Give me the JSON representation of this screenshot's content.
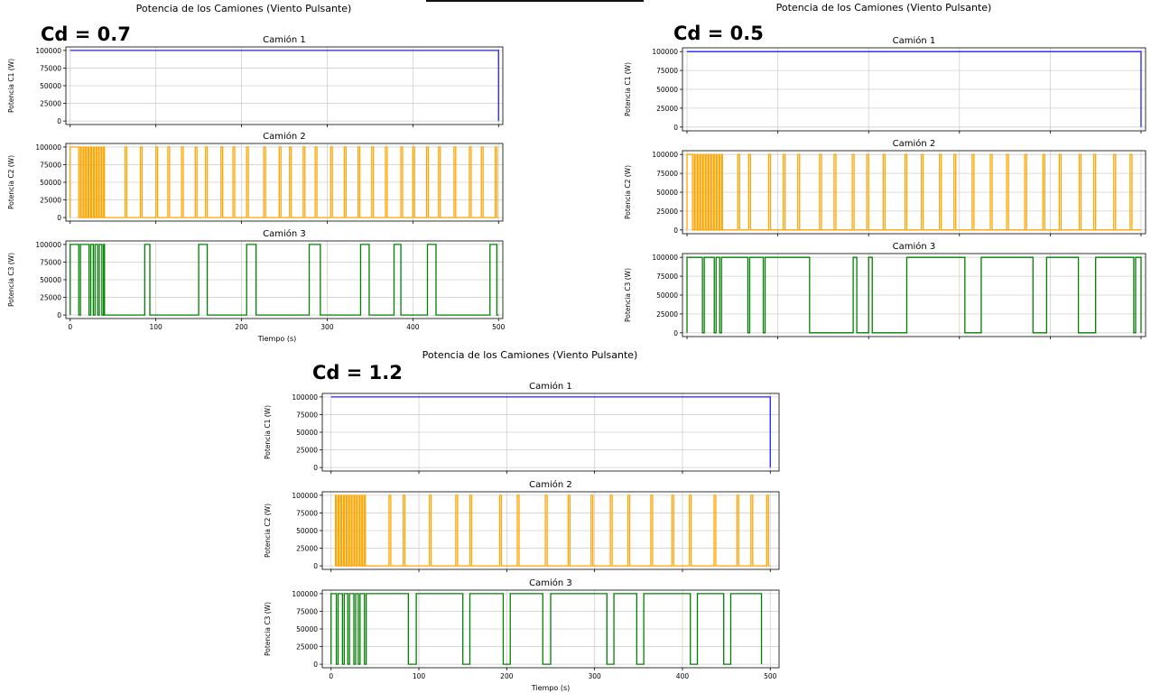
{
  "colors": {
    "truck1": "#1f1fff",
    "truck2": "#ffa500",
    "truck3": "#008000",
    "grid": "#d0d0d0",
    "axis": "#000000",
    "text": "#000000"
  },
  "panels": [
    {
      "id": "cd07",
      "cd_label": "Cd = 0.7",
      "figure_title": "Potencia de los Camiones (Viento Pulsante)",
      "xlabel": "Tiempo (s)",
      "show_x_tick_labels": true
    },
    {
      "id": "cd05",
      "cd_label": "Cd = 0.5",
      "figure_title": "Potencia de los Camiones (Viento Pulsante)",
      "xlabel": "",
      "show_x_tick_labels": false
    },
    {
      "id": "cd12",
      "cd_label": "Cd =  1.2",
      "figure_title": "Potencia de los Camiones (Viento Pulsante)",
      "xlabel": "Tiempo (s)",
      "show_x_tick_labels": true
    }
  ],
  "chart_data": [
    {
      "panel": "cd07",
      "type": "line",
      "title": "Camión 1",
      "ylabel": "Potencia C1 (W)",
      "xlim": [
        -5,
        505
      ],
      "ylim": [
        -5000,
        105000
      ],
      "x_ticks": [
        0,
        100,
        200,
        300,
        400,
        500
      ],
      "y_ticks": [
        0,
        25000,
        50000,
        75000,
        100000
      ],
      "y_tick_labels": [
        "0",
        "25000",
        "50000",
        "75000",
        "100000"
      ],
      "color_key": "truck1",
      "series": [
        {
          "x": [
            0,
            500,
            500
          ],
          "y": [
            100000,
            100000,
            0
          ]
        }
      ]
    },
    {
      "panel": "cd07",
      "type": "line",
      "title": "Camión 2",
      "ylabel": "Potencia C2 (W)",
      "xlim": [
        -5,
        505
      ],
      "ylim": [
        -5000,
        105000
      ],
      "x_ticks": [
        0,
        100,
        200,
        300,
        400,
        500
      ],
      "y_ticks": [
        0,
        25000,
        50000,
        75000,
        100000
      ],
      "y_tick_labels": [
        "0",
        "25000",
        "50000",
        "75000",
        "100000"
      ],
      "color_key": "truck2",
      "square_wave": {
        "start_high": true,
        "end": 500,
        "toggles": [
          0,
          10,
          12,
          13,
          15,
          16,
          18,
          19,
          21,
          22,
          24,
          25,
          27,
          28,
          30,
          31,
          33,
          34,
          36,
          37,
          39,
          40,
          64,
          66,
          82,
          84,
          100,
          102,
          114,
          116,
          130,
          132,
          146,
          148,
          158,
          160,
          176,
          178,
          190,
          192,
          206,
          208,
          226,
          228,
          244,
          246,
          256,
          258,
          272,
          274,
          286,
          288,
          304,
          306,
          320,
          322,
          336,
          338,
          352,
          354,
          368,
          370,
          386,
          388,
          400,
          402,
          416,
          418,
          430,
          432,
          448,
          450,
          466,
          468,
          480,
          482,
          496,
          498
        ]
      }
    },
    {
      "panel": "cd07",
      "type": "line",
      "title": "Camión 3",
      "ylabel": "Potencia C3 (W)",
      "xlabel": "Tiempo (s)",
      "xlim": [
        -5,
        505
      ],
      "ylim": [
        -5000,
        105000
      ],
      "x_ticks": [
        0,
        100,
        200,
        300,
        400,
        500
      ],
      "x_tick_labels": [
        "0",
        "100",
        "200",
        "300",
        "400",
        "500"
      ],
      "y_ticks": [
        0,
        25000,
        50000,
        75000,
        100000
      ],
      "y_tick_labels": [
        "0",
        "25000",
        "50000",
        "75000",
        "100000"
      ],
      "color_key": "truck3",
      "square_wave": {
        "start_high": true,
        "end": 500,
        "toggles": [
          0,
          10,
          12,
          22,
          24,
          27,
          29,
          32,
          34,
          37,
          39,
          40,
          87,
          93,
          150,
          160,
          206,
          217,
          279,
          292,
          339,
          349,
          378,
          386,
          417,
          427,
          490,
          498
        ]
      }
    },
    {
      "panel": "cd05",
      "type": "line",
      "title": "Camión 1",
      "ylabel": "Potencia C1 (W)",
      "xlim": [
        -5,
        505
      ],
      "ylim": [
        -5000,
        105000
      ],
      "x_ticks": [
        0,
        100,
        200,
        300,
        400,
        500
      ],
      "y_ticks": [
        0,
        25000,
        50000,
        75000,
        100000
      ],
      "y_tick_labels": [
        "0",
        "25000",
        "50000",
        "75000",
        "100000"
      ],
      "color_key": "truck1",
      "series": [
        {
          "x": [
            0,
            500,
            500
          ],
          "y": [
            100000,
            100000,
            0
          ]
        }
      ]
    },
    {
      "panel": "cd05",
      "type": "line",
      "title": "Camión 2",
      "ylabel": "Potencia C2 (W)",
      "xlim": [
        -5,
        505
      ],
      "ylim": [
        -5000,
        105000
      ],
      "x_ticks": [
        0,
        100,
        200,
        300,
        400,
        500
      ],
      "y_ticks": [
        0,
        25000,
        50000,
        75000,
        100000
      ],
      "y_tick_labels": [
        "0",
        "25000",
        "50000",
        "75000",
        "100000"
      ],
      "color_key": "truck2",
      "square_wave": {
        "start_high": true,
        "end": 500,
        "toggles": [
          0,
          6,
          8,
          9,
          11,
          12,
          14,
          15,
          17,
          18,
          20,
          21,
          23,
          24,
          26,
          27,
          29,
          30,
          32,
          33,
          35,
          36,
          38,
          39,
          56,
          58,
          68,
          70,
          90,
          92,
          106,
          108,
          122,
          124,
          146,
          148,
          162,
          164,
          182,
          184,
          198,
          200,
          216,
          218,
          240,
          242,
          258,
          260,
          278,
          280,
          294,
          296,
          314,
          316,
          334,
          336,
          352,
          354,
          372,
          374,
          392,
          394,
          410,
          412,
          432,
          434,
          448,
          450,
          470,
          472,
          488,
          490
        ]
      }
    },
    {
      "panel": "cd05",
      "type": "line",
      "title": "Camión 3",
      "ylabel": "Potencia C3 (W)",
      "xlim": [
        -5,
        505
      ],
      "ylim": [
        -5000,
        105000
      ],
      "x_ticks": [
        0,
        100,
        200,
        300,
        400,
        500
      ],
      "y_ticks": [
        0,
        25000,
        50000,
        75000,
        100000
      ],
      "y_tick_labels": [
        "0",
        "25000",
        "50000",
        "75000",
        "100000"
      ],
      "color_key": "truck3",
      "square_wave": {
        "start_high": true,
        "end": 500,
        "toggles": [
          0,
          17,
          19,
          30,
          32,
          36,
          38,
          67,
          69,
          84,
          86,
          135,
          183,
          187,
          200,
          204,
          242,
          306,
          324,
          381,
          396,
          431,
          450,
          492,
          494
        ]
      }
    },
    {
      "panel": "cd12",
      "type": "line",
      "title": "Camión 1",
      "ylabel": "Potencia C1 (W)",
      "xlim": [
        -10,
        510
      ],
      "ylim": [
        -5000,
        105000
      ],
      "x_ticks": [
        0,
        100,
        200,
        300,
        400,
        500
      ],
      "y_ticks": [
        0,
        25000,
        50000,
        75000,
        100000
      ],
      "y_tick_labels": [
        "0",
        "25000",
        "50000",
        "75000",
        "100000"
      ],
      "color_key": "truck1",
      "series": [
        {
          "x": [
            0,
            500,
            500
          ],
          "y": [
            100000,
            100000,
            0
          ]
        }
      ]
    },
    {
      "panel": "cd12",
      "type": "line",
      "title": "Camión 2",
      "ylabel": "Potencia C2 (W)",
      "xlim": [
        -10,
        510
      ],
      "ylim": [
        -5000,
        105000
      ],
      "x_ticks": [
        0,
        100,
        200,
        300,
        400,
        500
      ],
      "y_ticks": [
        0,
        25000,
        50000,
        75000,
        100000
      ],
      "y_tick_labels": [
        "0",
        "25000",
        "50000",
        "75000",
        "100000"
      ],
      "color_key": "truck2",
      "square_wave": {
        "start_high": true,
        "end": 500,
        "toggles": [
          5,
          6,
          8,
          9,
          11,
          12,
          14,
          15,
          17,
          18,
          20,
          21,
          23,
          24,
          26,
          27,
          29,
          30,
          32,
          33,
          35,
          36,
          38,
          39,
          66,
          68,
          82,
          84,
          112,
          114,
          142,
          144,
          158,
          160,
          192,
          194,
          212,
          214,
          244,
          246,
          270,
          272,
          296,
          298,
          318,
          320,
          338,
          340,
          364,
          366,
          388,
          390,
          408,
          410,
          436,
          438,
          462,
          464,
          478,
          480,
          496,
          498
        ]
      }
    },
    {
      "panel": "cd12",
      "type": "line",
      "title": "Camión 3",
      "ylabel": "Potencia C3 (W)",
      "xlabel": "Tiempo (s)",
      "xlim": [
        -10,
        510
      ],
      "ylim": [
        -5000,
        105000
      ],
      "x_ticks": [
        0,
        100,
        200,
        300,
        400,
        500
      ],
      "x_tick_labels": [
        "0",
        "100",
        "200",
        "300",
        "400",
        "500"
      ],
      "y_ticks": [
        0,
        25000,
        50000,
        75000,
        100000
      ],
      "y_tick_labels": [
        "0",
        "25000",
        "50000",
        "75000",
        "100000"
      ],
      "color_key": "truck3",
      "square_wave": {
        "start_high": true,
        "end": 490,
        "toggles": [
          0,
          6,
          8,
          13,
          15,
          19,
          21,
          26,
          28,
          31,
          33,
          38,
          40,
          88,
          97,
          150,
          158,
          196,
          204,
          241,
          250,
          314,
          322,
          348,
          356,
          409,
          417,
          447,
          455
        ]
      }
    }
  ]
}
